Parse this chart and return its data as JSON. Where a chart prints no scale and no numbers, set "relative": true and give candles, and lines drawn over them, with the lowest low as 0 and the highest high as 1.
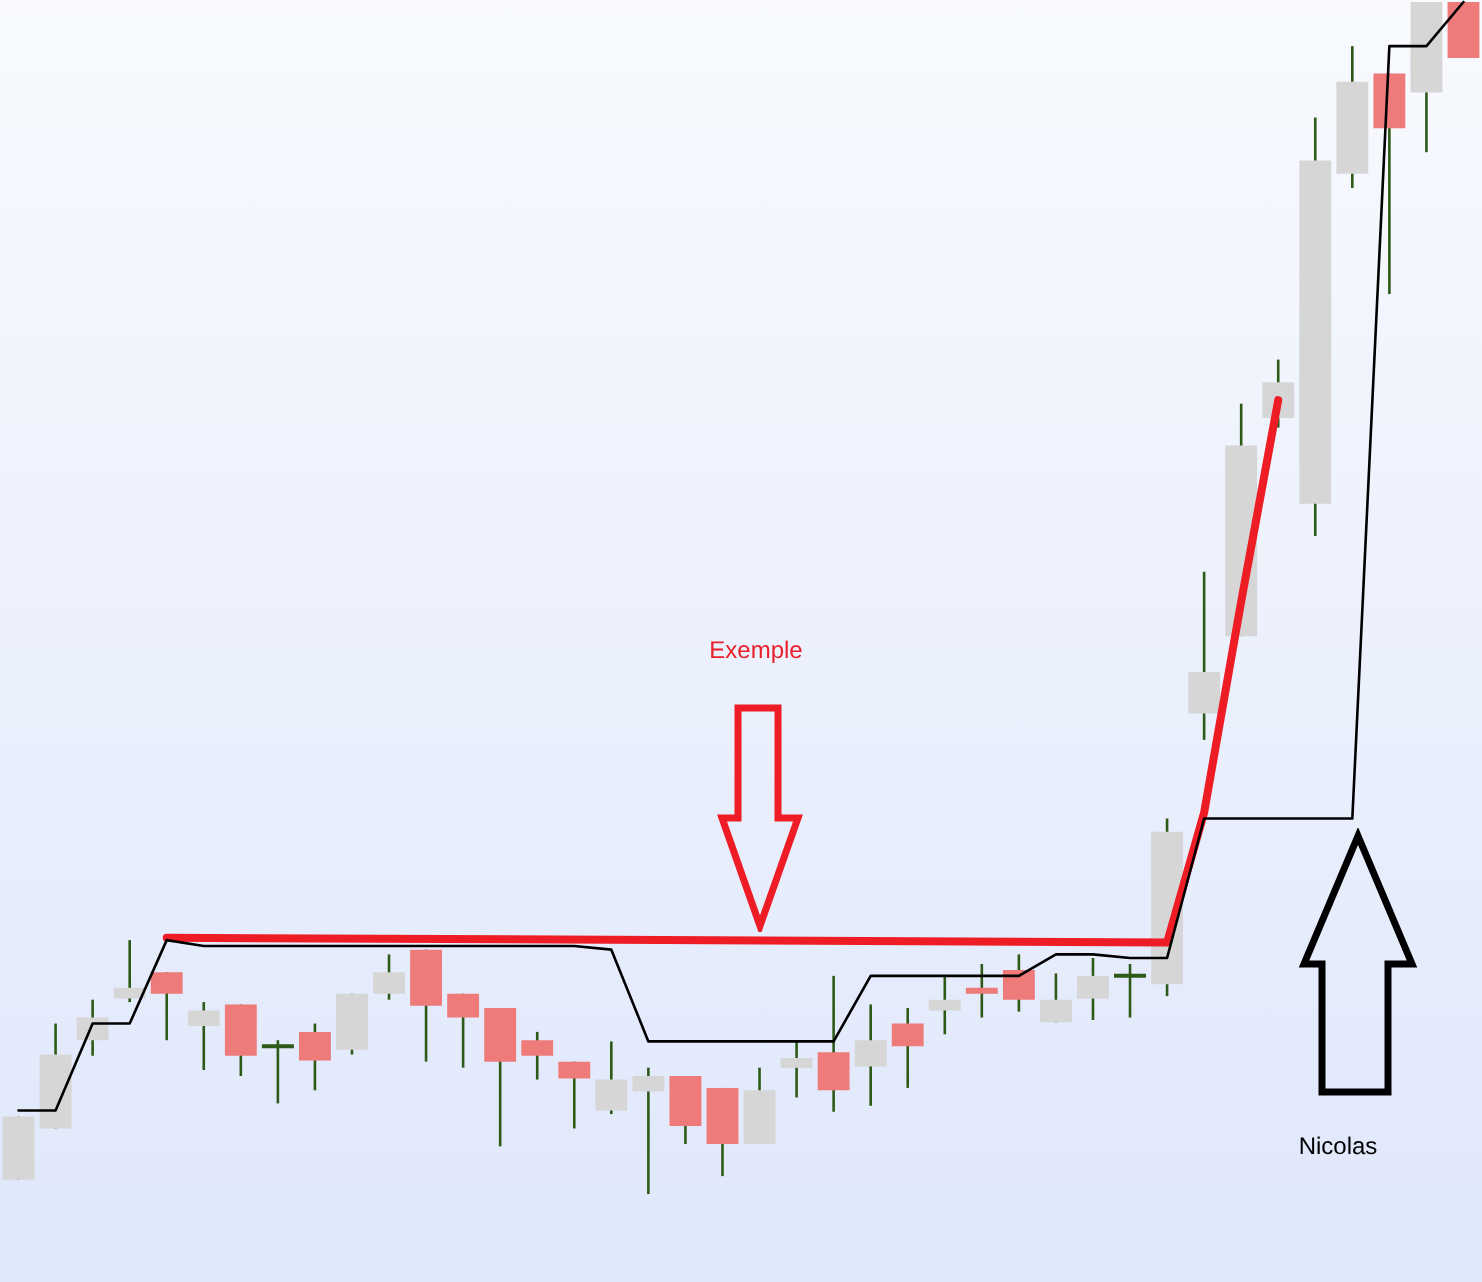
{
  "chart_data": {
    "type": "candlestick",
    "relative": true,
    "categories": [
      null,
      null,
      null,
      null,
      null,
      null,
      null,
      null,
      null,
      null,
      null,
      null,
      null,
      null,
      null,
      null,
      null,
      null,
      null,
      null,
      null,
      null,
      null,
      null,
      null,
      null,
      null,
      null,
      null,
      null,
      null,
      null,
      null,
      null,
      null,
      null,
      null,
      null,
      null,
      null
    ],
    "ohlc": [
      [
        0.012,
        0.065,
        0.012,
        0.065
      ],
      [
        0.055,
        0.143,
        0.055,
        0.117
      ],
      [
        0.129,
        0.163,
        0.116,
        0.148
      ],
      [
        0.164,
        0.213,
        0.161,
        0.173
      ],
      [
        0.186,
        0.186,
        0.129,
        0.168
      ],
      [
        0.141,
        0.161,
        0.104,
        0.154
      ],
      [
        0.159,
        0.159,
        0.099,
        0.116
      ],
      [
        0.124,
        0.129,
        0.076,
        0.124
      ],
      [
        0.136,
        0.143,
        0.087,
        0.112
      ],
      [
        0.121,
        0.168,
        0.117,
        0.168
      ],
      [
        0.168,
        0.201,
        0.163,
        0.186
      ],
      [
        0.205,
        0.205,
        0.111,
        0.158
      ],
      [
        0.168,
        0.168,
        0.106,
        0.148
      ],
      [
        0.156,
        0.156,
        0.04,
        0.111
      ],
      [
        0.129,
        0.136,
        0.096,
        0.116
      ],
      [
        0.111,
        0.111,
        0.055,
        0.097
      ],
      [
        0.07,
        0.128,
        0.067,
        0.096
      ],
      [
        0.086,
        0.106,
        0,
        0.099
      ],
      [
        0.099,
        0.099,
        0.042,
        0.057
      ],
      [
        0.089,
        0.089,
        0.015,
        0.042
      ],
      [
        0.042,
        0.106,
        0.042,
        0.087
      ],
      [
        0.106,
        0.128,
        0.081,
        0.114
      ],
      [
        0.119,
        0.183,
        0.069,
        0.087
      ],
      [
        0.107,
        0.159,
        0.074,
        0.129
      ],
      [
        0.143,
        0.156,
        0.089,
        0.124
      ],
      [
        0.154,
        0.183,
        0.134,
        0.163
      ],
      [
        0.173,
        0.193,
        0.148,
        0.168
      ],
      [
        0.188,
        0.201,
        0.153,
        0.163
      ],
      [
        0.144,
        0.185,
        0.144,
        0.163
      ],
      [
        0.164,
        0.198,
        0.146,
        0.183
      ],
      [
        0.183,
        0.193,
        0.148,
        0.183
      ],
      [
        0.176,
        0.315,
        0.166,
        0.304
      ],
      [
        0.403,
        0.522,
        0.381,
        0.438
      ],
      [
        0.468,
        0.663,
        0.468,
        0.628
      ],
      [
        0.651,
        0.7,
        0.643,
        0.681
      ],
      [
        0.579,
        0.903,
        0.552,
        0.867
      ],
      [
        0.856,
        0.963,
        0.844,
        0.933
      ],
      [
        0.94,
        0.94,
        0.755,
        0.894
      ],
      [
        0.924,
        1,
        0.874,
        1
      ],
      [
        1,
        1,
        0.953,
        0.953
      ]
    ],
    "colors": [
      "#d6d6d6",
      "#d6d6d6",
      "#d6d6d6",
      "#d6d6d6",
      "#ee7a7a",
      "#d6d6d6",
      "#ee7a7a",
      "#2d5a16",
      "#ee7a7a",
      "#d6d6d6",
      "#d6d6d6",
      "#ee7a7a",
      "#ee7a7a",
      "#ee7a7a",
      "#ee7a7a",
      "#ee7a7a",
      "#d6d6d6",
      "#d6d6d6",
      "#ee7a7a",
      "#ee7a7a",
      "#d6d6d6",
      "#d6d6d6",
      "#ee7a7a",
      "#d6d6d6",
      "#ee7a7a",
      "#d6d6d6",
      "#ee7a7a",
      "#ee7a7a",
      "#d6d6d6",
      "#d6d6d6",
      "#2d5a16",
      "#d6d6d6",
      "#d6d6d6",
      "#d6d6d6",
      "#d6d6d6",
      "#d6d6d6",
      "#d6d6d6",
      "#ee7a7a",
      "#d6d6d6",
      "#ee7a7a"
    ],
    "series": [
      {
        "type": "line",
        "color": "#000000",
        "values": [
          0.07,
          0.07,
          0.143,
          0.143,
          0.213,
          0.208,
          0.208,
          0.208,
          0.208,
          0.208,
          0.208,
          0.208,
          0.208,
          0.208,
          0.208,
          0.208,
          0.205,
          0.128,
          0.128,
          0.128,
          0.128,
          0.128,
          0.128,
          0.183,
          0.183,
          0.183,
          0.183,
          0.183,
          0.201,
          0.201,
          0.198,
          0.198,
          0.315,
          0.315,
          0.315,
          0.315,
          0.315,
          0.963,
          0.963,
          1
        ]
      },
      {
        "type": "line",
        "color": "#ee1c25",
        "values": [
          null,
          null,
          null,
          null,
          0.215,
          null,
          null,
          null,
          null,
          null,
          null,
          null,
          null,
          null,
          null,
          null,
          null,
          null,
          null,
          null,
          null,
          null,
          null,
          null,
          null,
          null,
          null,
          null,
          null,
          null,
          null,
          0.211,
          0.32,
          0.497,
          0.666,
          null,
          null,
          null,
          null,
          null
        ]
      }
    ],
    "annotations": [
      "Exemple",
      "Nicolas"
    ],
    "grid": false,
    "legend": false
  }
}
